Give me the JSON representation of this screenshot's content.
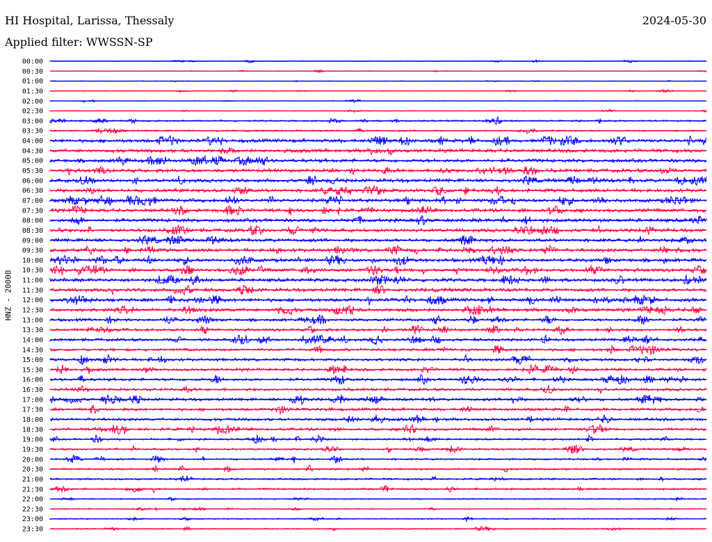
{
  "header": {
    "station": "HI Hospital, Larissa, Thessaly",
    "date": "2024-05-30",
    "filter": "Applied filter: WWSSN-SP"
  },
  "chart_data": {
    "type": "line",
    "ylabel": "HNZ - 20000",
    "rows": [
      "00:00",
      "00:30",
      "01:00",
      "01:30",
      "02:00",
      "02:30",
      "03:00",
      "03:30",
      "04:00",
      "04:30",
      "05:00",
      "05:30",
      "06:00",
      "06:30",
      "07:00",
      "07:30",
      "08:00",
      "08:30",
      "09:00",
      "09:30",
      "10:00",
      "10:30",
      "11:00",
      "11:30",
      "12:00",
      "12:30",
      "13:00",
      "13:30",
      "14:00",
      "14:30",
      "15:00",
      "15:30",
      "16:00",
      "16:30",
      "17:00",
      "17:30",
      "18:00",
      "18:30",
      "19:00",
      "19:30",
      "20:00",
      "20:30",
      "21:00",
      "21:30",
      "22:00",
      "22:30",
      "23:00",
      "23:30"
    ],
    "colors": [
      "#0000ff",
      "#ff0040"
    ],
    "grid": false
  }
}
